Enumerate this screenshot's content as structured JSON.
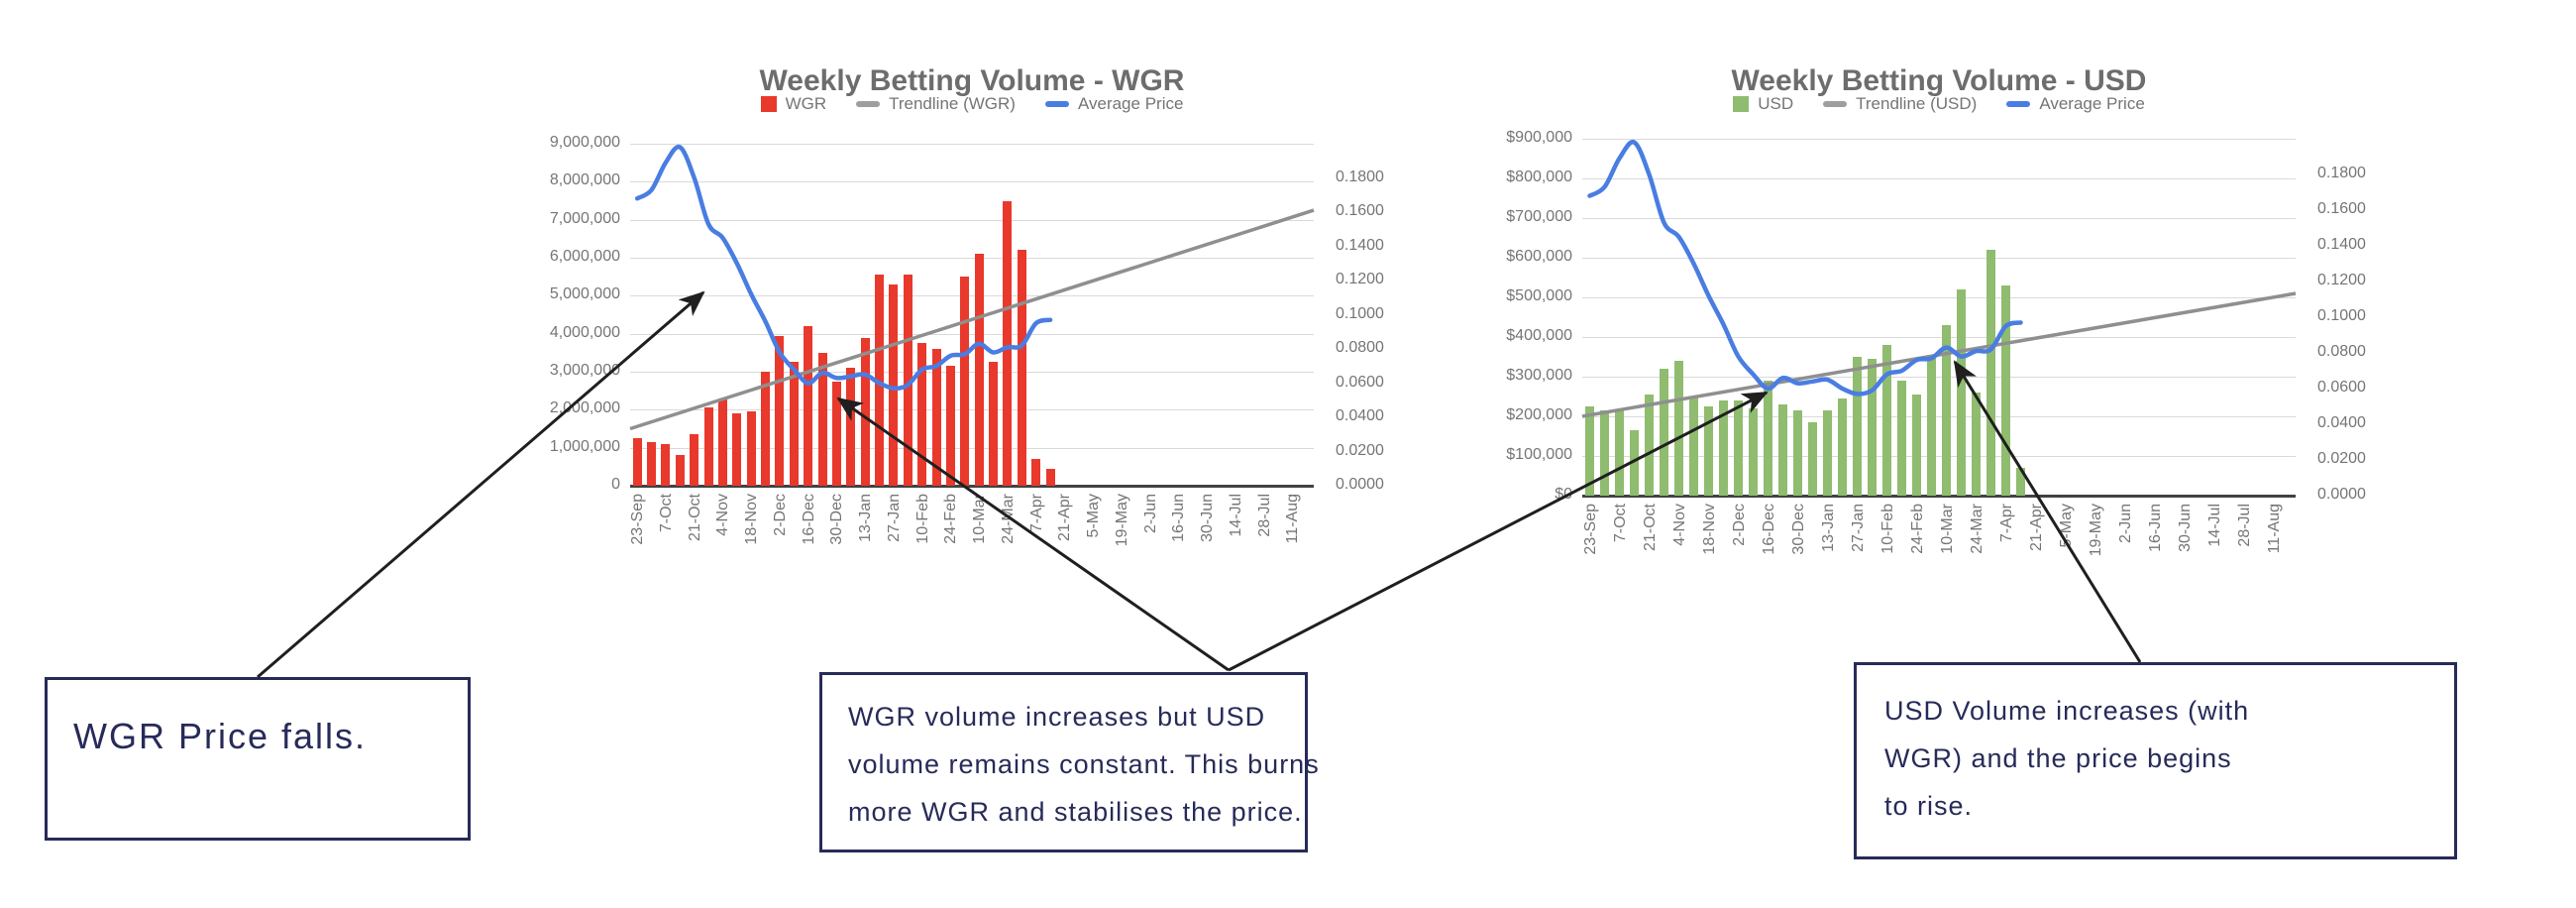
{
  "colors": {
    "background": "#ffffff",
    "bar_wgr": "#e8392c",
    "bar_usd": "#8fbc6f",
    "price_line": "#4a7de2",
    "trendline": "#8f8f8f",
    "legend_gray": "#9e9e9e",
    "grid": "#dadada",
    "baseline": "#424242",
    "axis_text": "#757575",
    "title_text": "#6d6d6d",
    "callout": "#272b59",
    "arrow": "#1f1f1f"
  },
  "charts": [
    {
      "title": "Weekly Betting Volume - WGR",
      "legend": [
        {
          "label": "WGR",
          "swatch": "square",
          "color": "#e8392c"
        },
        {
          "label": "Trendline (WGR)",
          "swatch": "dash",
          "color": "#9e9e9e"
        },
        {
          "label": "Average Price",
          "swatch": "dash",
          "color": "#4a7de2"
        }
      ],
      "y_ticks": [
        "9,000,000",
        "8,000,000",
        "7,000,000",
        "6,000,000",
        "5,000,000",
        "4,000,000",
        "3,000,000",
        "2,000,000",
        "1,000,000",
        "0"
      ],
      "right_ticks": [
        "0.1800",
        "0.1600",
        "0.1400",
        "0.1200",
        "0.1000",
        "0.0800",
        "0.0600",
        "0.0400",
        "0.0200",
        "0.0000"
      ]
    },
    {
      "title": "Weekly Betting Volume - USD",
      "legend": [
        {
          "label": "USD",
          "swatch": "square",
          "color": "#8fbc6f"
        },
        {
          "label": "Trendline (USD)",
          "swatch": "dash",
          "color": "#9e9e9e"
        },
        {
          "label": "Average Price",
          "swatch": "dash",
          "color": "#4a7de2"
        }
      ],
      "y_ticks": [
        "$900,000",
        "$800,000",
        "$700,000",
        "$600,000",
        "$500,000",
        "$400,000",
        "$300,000",
        "$200,000",
        "$100,000",
        "$0"
      ],
      "right_ticks": [
        "0.1800",
        "0.1600",
        "0.1400",
        "0.1200",
        "0.1000",
        "0.0800",
        "0.0600",
        "0.0400",
        "0.0200",
        "0.0000"
      ]
    }
  ],
  "chart_data": [
    {
      "type": "bar",
      "title": "Weekly Betting Volume - WGR",
      "x_tick_labels": [
        "23-Sep",
        "7-Oct",
        "21-Oct",
        "4-Nov",
        "18-Nov",
        "2-Dec",
        "16-Dec",
        "30-Dec",
        "13-Jan",
        "27-Jan",
        "10-Feb",
        "24-Feb",
        "10-Mar",
        "24-Mar",
        "7-Apr",
        "21-Apr",
        "5-May",
        "19-May",
        "2-Jun",
        "16-Jun",
        "30-Jun",
        "14-Jul",
        "28-Jul",
        "11-Aug"
      ],
      "weeks": [
        "23-Sep",
        "30-Sep",
        "7-Oct",
        "14-Oct",
        "21-Oct",
        "28-Oct",
        "4-Nov",
        "11-Nov",
        "18-Nov",
        "25-Nov",
        "2-Dec",
        "9-Dec",
        "16-Dec",
        "23-Dec",
        "30-Dec",
        "6-Jan",
        "13-Jan",
        "20-Jan",
        "27-Jan",
        "3-Feb",
        "10-Feb",
        "17-Feb",
        "24-Feb",
        "3-Mar",
        "10-Mar",
        "17-Mar",
        "24-Mar",
        "31-Mar",
        "7-Apr",
        "14-Apr"
      ],
      "series": [
        {
          "name": "WGR",
          "type": "bar",
          "axis": "left",
          "values": [
            1250000,
            1150000,
            1100000,
            800000,
            1350000,
            2050000,
            2300000,
            1900000,
            1950000,
            3000000,
            3950000,
            3250000,
            4200000,
            3500000,
            2750000,
            3100000,
            3900000,
            5550000,
            5300000,
            5550000,
            3750000,
            3600000,
            3150000,
            5500000,
            6100000,
            3250000,
            7500000,
            6200000,
            700000,
            450000
          ]
        },
        {
          "name": "Average Price",
          "type": "line",
          "axis": "right",
          "values": [
            0.168,
            0.173,
            0.189,
            0.198,
            0.18,
            0.153,
            0.145,
            0.13,
            0.112,
            0.096,
            0.078,
            0.068,
            0.06,
            0.066,
            0.063,
            0.064,
            0.065,
            0.06,
            0.057,
            0.059,
            0.068,
            0.07,
            0.076,
            0.077,
            0.083,
            0.078,
            0.081,
            0.082,
            0.095,
            0.097
          ]
        },
        {
          "name": "Trendline (WGR)",
          "type": "trendline",
          "axis": "left",
          "start": 1500000,
          "end": 7250000
        }
      ],
      "ylim_left": [
        0,
        9000000
      ],
      "ylim_right": [
        0,
        0.2
      ],
      "x_slots": 48,
      "grid": true,
      "legend_position": "top"
    },
    {
      "type": "bar",
      "title": "Weekly Betting Volume - USD",
      "x_tick_labels": [
        "23-Sep",
        "7-Oct",
        "21-Oct",
        "4-Nov",
        "18-Nov",
        "2-Dec",
        "16-Dec",
        "30-Dec",
        "13-Jan",
        "27-Jan",
        "10-Feb",
        "24-Feb",
        "10-Mar",
        "24-Mar",
        "7-Apr",
        "21-Apr",
        "5-May",
        "19-May",
        "2-Jun",
        "16-Jun",
        "30-Jun",
        "14-Jul",
        "28-Jul",
        "11-Aug"
      ],
      "weeks": [
        "23-Sep",
        "30-Sep",
        "7-Oct",
        "14-Oct",
        "21-Oct",
        "28-Oct",
        "4-Nov",
        "11-Nov",
        "18-Nov",
        "25-Nov",
        "2-Dec",
        "9-Dec",
        "16-Dec",
        "23-Dec",
        "30-Dec",
        "6-Jan",
        "13-Jan",
        "20-Jan",
        "27-Jan",
        "3-Feb",
        "10-Feb",
        "17-Feb",
        "24-Feb",
        "3-Mar",
        "10-Mar",
        "17-Mar",
        "24-Mar",
        "31-Mar",
        "7-Apr",
        "14-Apr"
      ],
      "series": [
        {
          "name": "USD",
          "type": "bar",
          "axis": "left",
          "values": [
            225000,
            215000,
            215000,
            165000,
            255000,
            320000,
            340000,
            250000,
            225000,
            240000,
            240000,
            220000,
            290000,
            230000,
            215000,
            185000,
            215000,
            245000,
            350000,
            345000,
            380000,
            290000,
            255000,
            355000,
            430000,
            520000,
            260000,
            620000,
            530000,
            70000
          ]
        },
        {
          "name": "Average Price",
          "type": "line",
          "axis": "right",
          "values": [
            0.168,
            0.173,
            0.189,
            0.198,
            0.18,
            0.153,
            0.145,
            0.13,
            0.112,
            0.096,
            0.078,
            0.068,
            0.06,
            0.066,
            0.063,
            0.064,
            0.065,
            0.06,
            0.057,
            0.059,
            0.068,
            0.07,
            0.076,
            0.077,
            0.083,
            0.078,
            0.081,
            0.082,
            0.095,
            0.097
          ]
        },
        {
          "name": "Trendline (USD)",
          "type": "trendline",
          "axis": "left",
          "start": 200000,
          "end": 510000
        }
      ],
      "ylim_left": [
        0,
        900000
      ],
      "ylim_right": [
        0,
        0.2
      ],
      "x_slots": 48,
      "grid": true,
      "legend_position": "top"
    }
  ],
  "annotations": [
    {
      "text": "WGR Price falls.",
      "lines": [
        "WGR Price falls."
      ]
    },
    {
      "text": "WGR volume increases but USD volume remains constant. This burns more WGR and stabilises the price.",
      "lines": [
        "WGR volume increases but USD",
        "volume remains constant. This burns",
        "more WGR and stabilises the price."
      ]
    },
    {
      "text": "USD Volume increases (with WGR) and the price begins to rise.",
      "lines": [
        "USD Volume increases (with",
        "WGR) and the price begins",
        "to rise."
      ]
    }
  ]
}
